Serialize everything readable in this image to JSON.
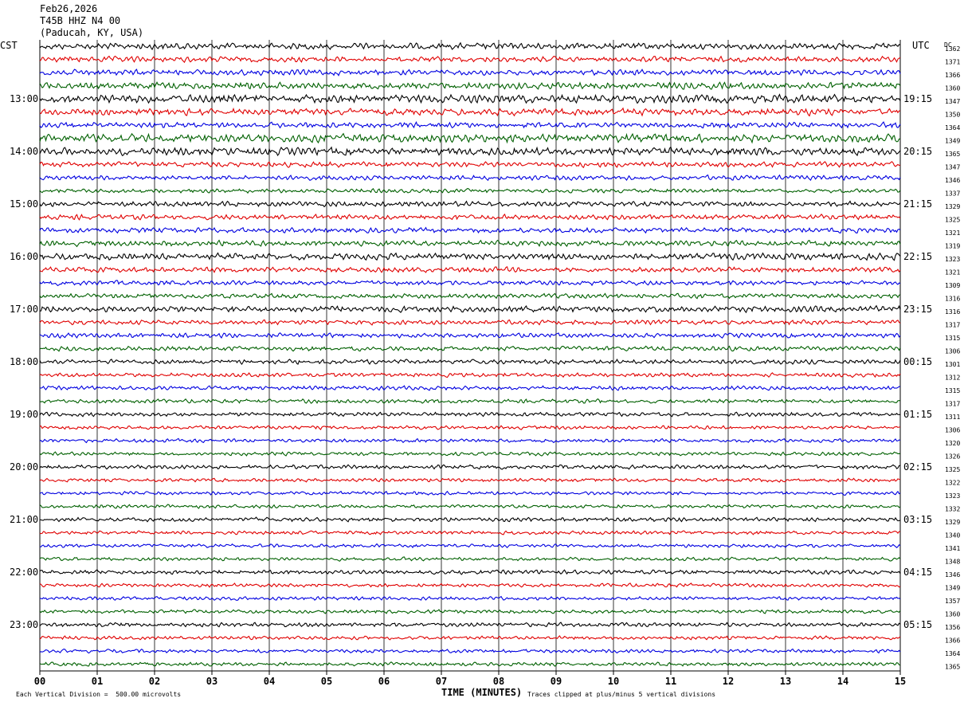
{
  "header": {
    "date": "Feb26,2026",
    "station": "T45B HHZ N4 00",
    "location": "(Paducah, KY, USA)"
  },
  "chart_data": {
    "type": "line",
    "subtype": "helicorder",
    "left_axis_label": "CST",
    "right_axis_label": "UTC",
    "dc_label": "DC",
    "x": {
      "label": "TIME (MINUTES)",
      "ticks": [
        "00",
        "01",
        "02",
        "03",
        "04",
        "05",
        "06",
        "07",
        "08",
        "09",
        "10",
        "11",
        "12",
        "13",
        "14",
        "15"
      ],
      "range": [
        0,
        15
      ]
    },
    "left_hour_labels": [
      "13:00",
      "14:00",
      "15:00",
      "16:00",
      "17:00",
      "18:00",
      "19:00",
      "20:00",
      "21:00",
      "22:00",
      "23:00"
    ],
    "right_hour_labels": [
      "19:15",
      "20:15",
      "21:15",
      "22:15",
      "23:15",
      "00:15",
      "01:15",
      "02:15",
      "03:15",
      "04:15",
      "05:15"
    ],
    "trace_colors": [
      "#000000",
      "#e00000",
      "#0000e0",
      "#006000"
    ],
    "traces_per_hour": 4,
    "first_labelled_trace": 4,
    "dc_offsets": [
      1362,
      1371,
      1366,
      1360,
      1347,
      1350,
      1364,
      1349,
      1365,
      1347,
      1346,
      1337,
      1329,
      1325,
      1321,
      1319,
      1323,
      1321,
      1309,
      1316,
      1316,
      1317,
      1315,
      1306,
      1301,
      1312,
      1315,
      1317,
      1311,
      1306,
      1320,
      1326,
      1325,
      1322,
      1323,
      1332,
      1329,
      1340,
      1341,
      1348,
      1346,
      1349,
      1357,
      1360,
      1356,
      1366,
      1364,
      1365
    ],
    "trace_amplitude_level": [
      1.2,
      1.1,
      1.1,
      1.3,
      1.6,
      1.3,
      1.1,
      1.6,
      1.5,
      1.0,
      0.9,
      0.8,
      1.0,
      1.0,
      1.0,
      1.1,
      1.3,
      1.0,
      0.9,
      0.9,
      1.2,
      0.9,
      0.9,
      0.9,
      0.9,
      0.8,
      0.8,
      0.8,
      0.8,
      0.7,
      0.7,
      0.7,
      0.8,
      0.7,
      0.7,
      0.7,
      0.8,
      0.7,
      0.7,
      0.7,
      0.8,
      0.7,
      0.7,
      0.7,
      0.8,
      0.7,
      0.7,
      0.7
    ],
    "footer_scale": "Each Vertical Division =  500.00 microvolts",
    "footer_clip": "Traces clipped at plus/minus 5 vertical divisions"
  }
}
